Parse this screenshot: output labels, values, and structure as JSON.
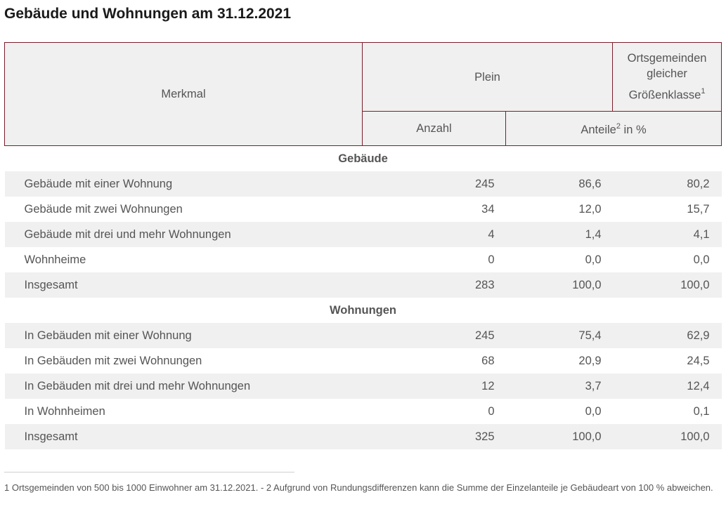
{
  "title": "Gebäude und Wohnungen am 31.12.2021",
  "header": {
    "merkmal": "Merkmal",
    "plein": "Plein",
    "ortsgemeinden_line1": "Ortsgemeinden",
    "ortsgemeinden_line2": "gleicher",
    "ortsgemeinden_line3": "Größenklasse",
    "ortsgemeinden_sup": "1",
    "anzahl": "Anzahl",
    "anteile": "Anteile",
    "anteile_sup": "2",
    "anteile_unit": " in %"
  },
  "sections": [
    {
      "title": "Gebäude",
      "rows": [
        {
          "label": "Gebäude mit einer Wohnung",
          "anzahl": "245",
          "anteil_plein": "86,6",
          "anteil_og": "80,2"
        },
        {
          "label": "Gebäude mit zwei Wohnungen",
          "anzahl": "34",
          "anteil_plein": "12,0",
          "anteil_og": "15,7"
        },
        {
          "label": "Gebäude mit drei und mehr Wohnungen",
          "anzahl": "4",
          "anteil_plein": "1,4",
          "anteil_og": "4,1"
        },
        {
          "label": "Wohnheime",
          "anzahl": "0",
          "anteil_plein": "0,0",
          "anteil_og": "0,0"
        },
        {
          "label": "Insgesamt",
          "anzahl": "283",
          "anteil_plein": "100,0",
          "anteil_og": "100,0"
        }
      ]
    },
    {
      "title": "Wohnungen",
      "rows": [
        {
          "label": "In Gebäuden mit einer Wohnung",
          "anzahl": "245",
          "anteil_plein": "75,4",
          "anteil_og": "62,9"
        },
        {
          "label": "In Gebäuden mit zwei Wohnungen",
          "anzahl": "68",
          "anteil_plein": "20,9",
          "anteil_og": "24,5"
        },
        {
          "label": "In Gebäuden mit drei und mehr Wohnungen",
          "anzahl": "12",
          "anteil_plein": "3,7",
          "anteil_og": "12,4"
        },
        {
          "label": "In Wohnheimen",
          "anzahl": "0",
          "anteil_plein": "0,0",
          "anteil_og": "0,1"
        },
        {
          "label": "Insgesamt",
          "anzahl": "325",
          "anteil_plein": "100,0",
          "anteil_og": "100,0"
        }
      ]
    }
  ],
  "footnote": "1 Ortsgemeinden von 500 bis 1000 Einwohner am 31.12.2021. - 2 Aufgrund von Rundungsdifferenzen kann die Summe der Einzelanteile je Gebäudeart von 100 % abweichen.",
  "colors": {
    "header_border": "#7a1e2c",
    "header_bg": "#f0f0f0",
    "stripe_bg": "#f0f0f0",
    "text": "#555555"
  }
}
